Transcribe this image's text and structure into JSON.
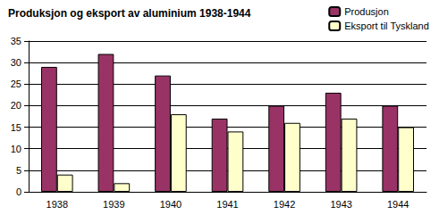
{
  "chart_data": {
    "type": "bar",
    "title": "Produksjon og eksport av aluminium 1938-1944",
    "categories": [
      "1938",
      "1939",
      "1940",
      "1941",
      "1942",
      "1943",
      "1944"
    ],
    "series": [
      {
        "name": "Produsjon",
        "color": "#993366",
        "values": [
          29,
          32,
          27,
          17,
          20,
          23,
          20
        ]
      },
      {
        "name": "Eksport til Tyskland",
        "color": "#ffffcc",
        "values": [
          4,
          2,
          18,
          14,
          16,
          17,
          15
        ]
      }
    ],
    "ylim": [
      0,
      35
    ],
    "yticks": [
      0,
      5,
      10,
      15,
      20,
      25,
      30,
      35
    ],
    "grid": true,
    "legend": "top-right"
  }
}
